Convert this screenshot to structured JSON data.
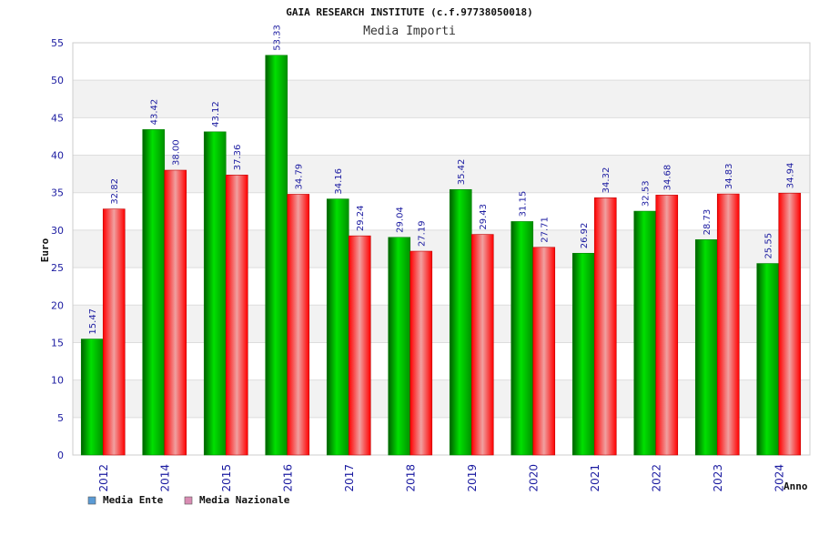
{
  "chart_data": {
    "type": "bar",
    "title": "GAIA RESEARCH INSTITUTE (c.f.97738050018)",
    "subtitle": "Media Importi",
    "ylabel": "Euro",
    "xlabel": "Anno",
    "ylim": [
      0,
      55
    ],
    "ytick_step": 5,
    "grid": true,
    "legend_position": "bottom-left",
    "categories": [
      "2012",
      "2014",
      "2015",
      "2016",
      "2017",
      "2018",
      "2019",
      "2020",
      "2021",
      "2022",
      "2023",
      "2024"
    ],
    "series": [
      {
        "name": "Media Ente",
        "color": "#00c000",
        "legend_color": "#5b9bd5",
        "values": [
          15.47,
          43.42,
          43.12,
          53.33,
          34.16,
          29.04,
          35.42,
          31.15,
          26.92,
          32.53,
          28.73,
          25.55
        ],
        "labels": [
          "15.47",
          "43.42",
          "43.12",
          "53.33",
          "34.16",
          "29.04",
          "35.42",
          "31.15",
          "26.92",
          "32.53",
          "28.73",
          "25.55"
        ]
      },
      {
        "name": "Media Nazionale",
        "color": "#e00000",
        "legend_color": "#d98cb3",
        "values": [
          32.82,
          38.0,
          37.36,
          34.79,
          29.24,
          27.19,
          29.43,
          27.71,
          34.32,
          34.68,
          34.83,
          34.94
        ],
        "labels": [
          "32.82",
          "38.00",
          "37.36",
          "34.79",
          "29.24",
          "27.19",
          "29.43",
          "27.71",
          "34.32",
          "34.68",
          "34.83",
          "34.94"
        ]
      }
    ]
  }
}
